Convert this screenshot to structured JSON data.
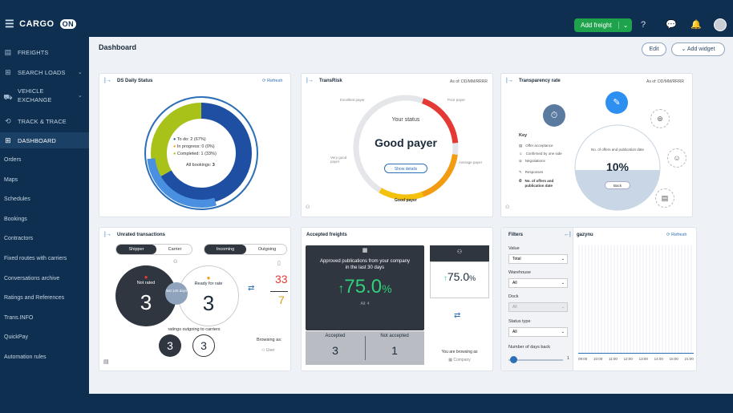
{
  "topbar": {
    "brand": "CARGO",
    "brand_mark": "ON",
    "add_freight": "Add freight"
  },
  "sidebar": {
    "main_items": [
      {
        "label": "FREIGHTS"
      },
      {
        "label": "SEARCH LOADS"
      },
      {
        "label": "VEHICLE"
      },
      {
        "label": "EXCHANGE"
      },
      {
        "label": "TRACK & TRACE"
      },
      {
        "label": "DASHBOARD"
      }
    ],
    "sub_items": [
      "Orders",
      "Maps",
      "Schedules",
      "Bookings",
      "Contractors",
      "Fixed routes with carriers",
      "Conversations archive",
      "Ratings and References",
      "Trans.INFO",
      "QuickPay",
      "Automation rules"
    ]
  },
  "page": {
    "title": "Dashboard",
    "edit": "Edit",
    "add_widget": "Add widget"
  },
  "ds_status": {
    "title": "DS Daily Status",
    "refresh": "Refresh",
    "legend": [
      "To do: 2 (67%)",
      "In progress: 0 (0%)",
      "Completed: 1 (33%)"
    ],
    "all_bookings_label": "All bookings:",
    "all_bookings_value": "3",
    "colors": {
      "todo": "#1f4fa3",
      "in_progress": "#f0a020",
      "completed": "#a8c21a"
    }
  },
  "translink": {
    "title": "TransRisk",
    "as_of": "As of: DD/MM/RRRR",
    "excellent": "Excellent payer",
    "poor": "Poor payer",
    "very_good": "Very good payer",
    "average": "Average payer",
    "good": "Good payer",
    "your_status": "Your status",
    "status": "Good payer",
    "show_details": "Show details"
  },
  "transparency": {
    "title": "Transparency rate",
    "as_of": "As of: DD/MM/RRRR",
    "key": "Key",
    "key_items": [
      "Offer acceptance",
      "Confirmed by one side",
      "Negotiations",
      "Responses",
      "No. of offers and publication date"
    ],
    "circle_label": "No. of offers and publication date",
    "value": "10%",
    "back": "Back"
  },
  "unrated": {
    "title": "Unrated transactions",
    "tab_shipper": "Shipper",
    "tab_carrier": "Carrier",
    "tab_incoming": "Incoming",
    "tab_outgoing": "Outgoing",
    "not_rated": "Not rated",
    "not_rated_value": "3",
    "last_days": "last 120 days",
    "ready_for_rate": "Ready for rate",
    "ready_value": "3",
    "ratio_top": "33",
    "ratio_bottom": "7",
    "ratings_outgoing": "ratings outgoing to carriers",
    "small_a": "3",
    "small_b": "3",
    "browsing_as": "Browsing as:",
    "browsing_user": "User"
  },
  "accepted": {
    "title": "Accepted freights",
    "approved_text": "Approved publications from your company in the last 30 days",
    "main_value": "75.0",
    "percent": "%",
    "all_label": "All: 4",
    "accepted_label": "Accepted",
    "accepted_value": "3",
    "not_accepted_label": "Not accepted",
    "not_accepted_value": "1",
    "side_value": "75.0",
    "browsing_as": "You are browsing as",
    "browsing_company": "Company"
  },
  "filters": {
    "title": "Filters",
    "value_label": "Value",
    "value_selected": "Total",
    "warehouse_label": "Warehouse",
    "warehouse_selected": "All",
    "dock_label": "Dock",
    "dock_selected": "All",
    "status_label": "Status type",
    "status_selected": "All",
    "days_label": "Number of days back",
    "days_value": "1",
    "right_title": "gazynu",
    "refresh": "Refresh",
    "times": [
      "09:00",
      "10:00",
      "11:00",
      "12:00",
      "13:00",
      "14:00",
      "15:00",
      "21:00"
    ]
  }
}
